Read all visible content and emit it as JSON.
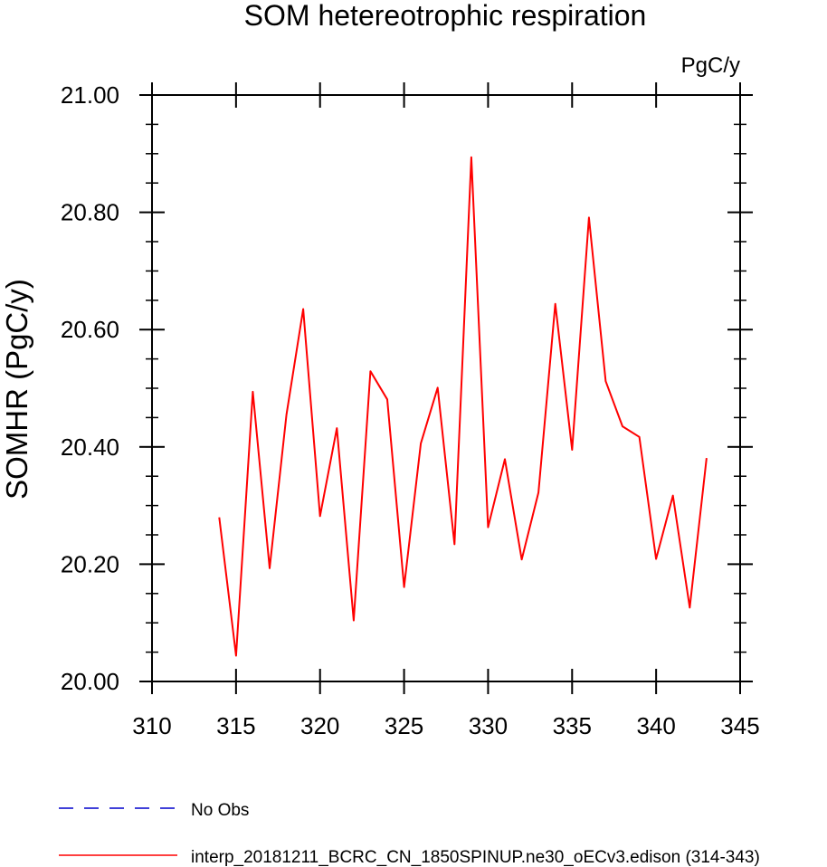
{
  "chart_data": {
    "type": "line",
    "title": "SOM hetereotrophic respiration",
    "units": "PgC/y",
    "xlabel": "",
    "ylabel": "SOMHR  (PgC/y)",
    "xlim": [
      310,
      345
    ],
    "ylim": [
      20.0,
      21.0
    ],
    "xticks": [
      "310",
      "315",
      "320",
      "325",
      "330",
      "335",
      "340",
      "345"
    ],
    "yticks": [
      "20.00",
      "20.20",
      "20.40",
      "20.60",
      "20.80",
      "21.00"
    ],
    "series": [
      {
        "name": "interp_20181211_BCRC_CN_1850SPINUP.ne30_oECv3.edison (314-343)",
        "color": "#ff0000",
        "style": "solid",
        "x": [
          314,
          315,
          316,
          317,
          318,
          319,
          320,
          321,
          322,
          323,
          324,
          325,
          326,
          327,
          328,
          329,
          330,
          331,
          332,
          333,
          334,
          335,
          336,
          337,
          338,
          339,
          340,
          341,
          342,
          343
        ],
        "y": [
          20.28,
          20.044,
          20.494,
          20.193,
          20.455,
          20.635,
          20.282,
          20.432,
          20.104,
          20.529,
          20.481,
          20.161,
          20.406,
          20.501,
          20.234,
          20.894,
          20.263,
          20.379,
          20.208,
          20.322,
          20.644,
          20.395,
          20.791,
          20.512,
          20.435,
          20.417,
          20.209,
          20.317,
          20.126,
          20.381
        ]
      }
    ],
    "legend": [
      {
        "label": "No Obs",
        "color": "#0000cc",
        "style": "dashed"
      },
      {
        "label": "interp_20181211_BCRC_CN_1850SPINUP.ne30_oECv3.edison (314-343)",
        "color": "#ff0000",
        "style": "solid"
      }
    ]
  }
}
